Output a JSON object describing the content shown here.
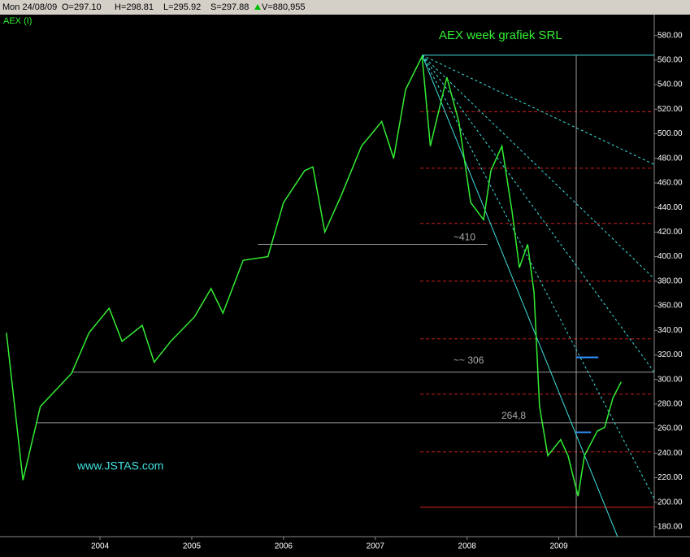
{
  "header": {
    "date": "Mon 24/08/09",
    "open": "O=297.10",
    "high": "H=298.81",
    "low": "L=295.92",
    "close": "S=297.88",
    "volume": "V=880,955"
  },
  "chart_data": {
    "type": "line",
    "title": "AEX week grafiek  SRL",
    "instrument": "AEX (I)",
    "watermark": "www.JSTAS.com",
    "series": [
      {
        "name": "AEX (I)",
        "color": "#33ee33",
        "x": [
          2002.98,
          2003.16,
          2003.35,
          2003.69,
          2003.88,
          2004.1,
          2004.24,
          2004.46,
          2004.59,
          2004.77,
          2005.03,
          2005.21,
          2005.34,
          2005.56,
          2005.83,
          2006.0,
          2006.23,
          2006.32,
          2006.45,
          2006.63,
          2006.85,
          2007.07,
          2007.2,
          2007.33,
          2007.51,
          2007.6,
          2007.78,
          2007.91,
          2008.04,
          2008.18,
          2008.26,
          2008.38,
          2008.49,
          2008.57,
          2008.66,
          2008.73,
          2008.79,
          2008.88,
          2009.02,
          2009.1,
          2009.21,
          2009.28,
          2009.42,
          2009.5,
          2009.59,
          2009.68
        ],
        "values": [
          338,
          218,
          278,
          305,
          338,
          358,
          331,
          344,
          314,
          331,
          351,
          374,
          354,
          397,
          400,
          444,
          470,
          473,
          420,
          450,
          490,
          510,
          480,
          536,
          563,
          490,
          546,
          510,
          444,
          430,
          470,
          490,
          437,
          391,
          410,
          371,
          278,
          238,
          251,
          238,
          205,
          238,
          258,
          261,
          285,
          298
        ]
      }
    ],
    "xlim": [
      2002.91,
      2010.04
    ],
    "ylim": [
      172,
      597
    ],
    "xticks": [
      2004,
      2005,
      2006,
      2007,
      2008,
      2009
    ],
    "yticks": [
      {
        "value": 180,
        "label": "180.00"
      },
      {
        "value": 200,
        "label": "200.00"
      },
      {
        "value": 220,
        "label": "220.00"
      },
      {
        "value": 240,
        "label": "240.00"
      },
      {
        "value": 260,
        "label": "260.00"
      },
      {
        "value": 280,
        "label": "280.00"
      },
      {
        "value": 300,
        "label": "300.00"
      },
      {
        "value": 320,
        "label": "320.00"
      },
      {
        "value": 340,
        "label": "340.00"
      },
      {
        "value": 360,
        "label": "360.00"
      },
      {
        "value": 380,
        "label": "380.00"
      },
      {
        "value": 400,
        "label": "400.00"
      },
      {
        "value": 420,
        "label": "420.00"
      },
      {
        "value": 440,
        "label": "440.00"
      },
      {
        "value": 460,
        "label": "460.00"
      },
      {
        "value": 480,
        "label": "480.00"
      },
      {
        "value": 500,
        "label": "500.00"
      },
      {
        "value": 520,
        "label": "520.00"
      },
      {
        "value": 540,
        "label": "540.00"
      },
      {
        "value": 560,
        "label": "560.00"
      },
      {
        "value": 580,
        "label": "580.00"
      }
    ],
    "support_lines": [
      {
        "value": 410,
        "from": 2005.72,
        "to": 2008.22,
        "label": "~410"
      },
      {
        "value": 306,
        "from": 2003.69,
        "to": 2010.04,
        "label": "~~ 306"
      },
      {
        "value": 264.8,
        "from": 2003.3,
        "to": 2010.04,
        "label": "264,8"
      }
    ],
    "red_levels": {
      "values": [
        518,
        472,
        427,
        380,
        333,
        288,
        241
      ],
      "from": 2007.49,
      "color": "#d02020"
    },
    "red_floor": {
      "value": 196,
      "from": 2007.49,
      "color": "#e02020"
    },
    "top_line": {
      "value": 564,
      "from": 2007.51,
      "color": "#40e0e0"
    },
    "marker_x": 2009.19,
    "blue_segments": [
      {
        "value": 318,
        "from": 2009.19,
        "to": 2009.43
      },
      {
        "value": 257,
        "from": 2009.19,
        "to": 2009.35
      }
    ],
    "fan": {
      "origin": [
        2007.51,
        564
      ],
      "solid_end": [
        2009.64,
        172
      ],
      "dashed_ends": [
        475,
        382,
        306,
        203
      ],
      "color": "#40e0e0"
    }
  }
}
